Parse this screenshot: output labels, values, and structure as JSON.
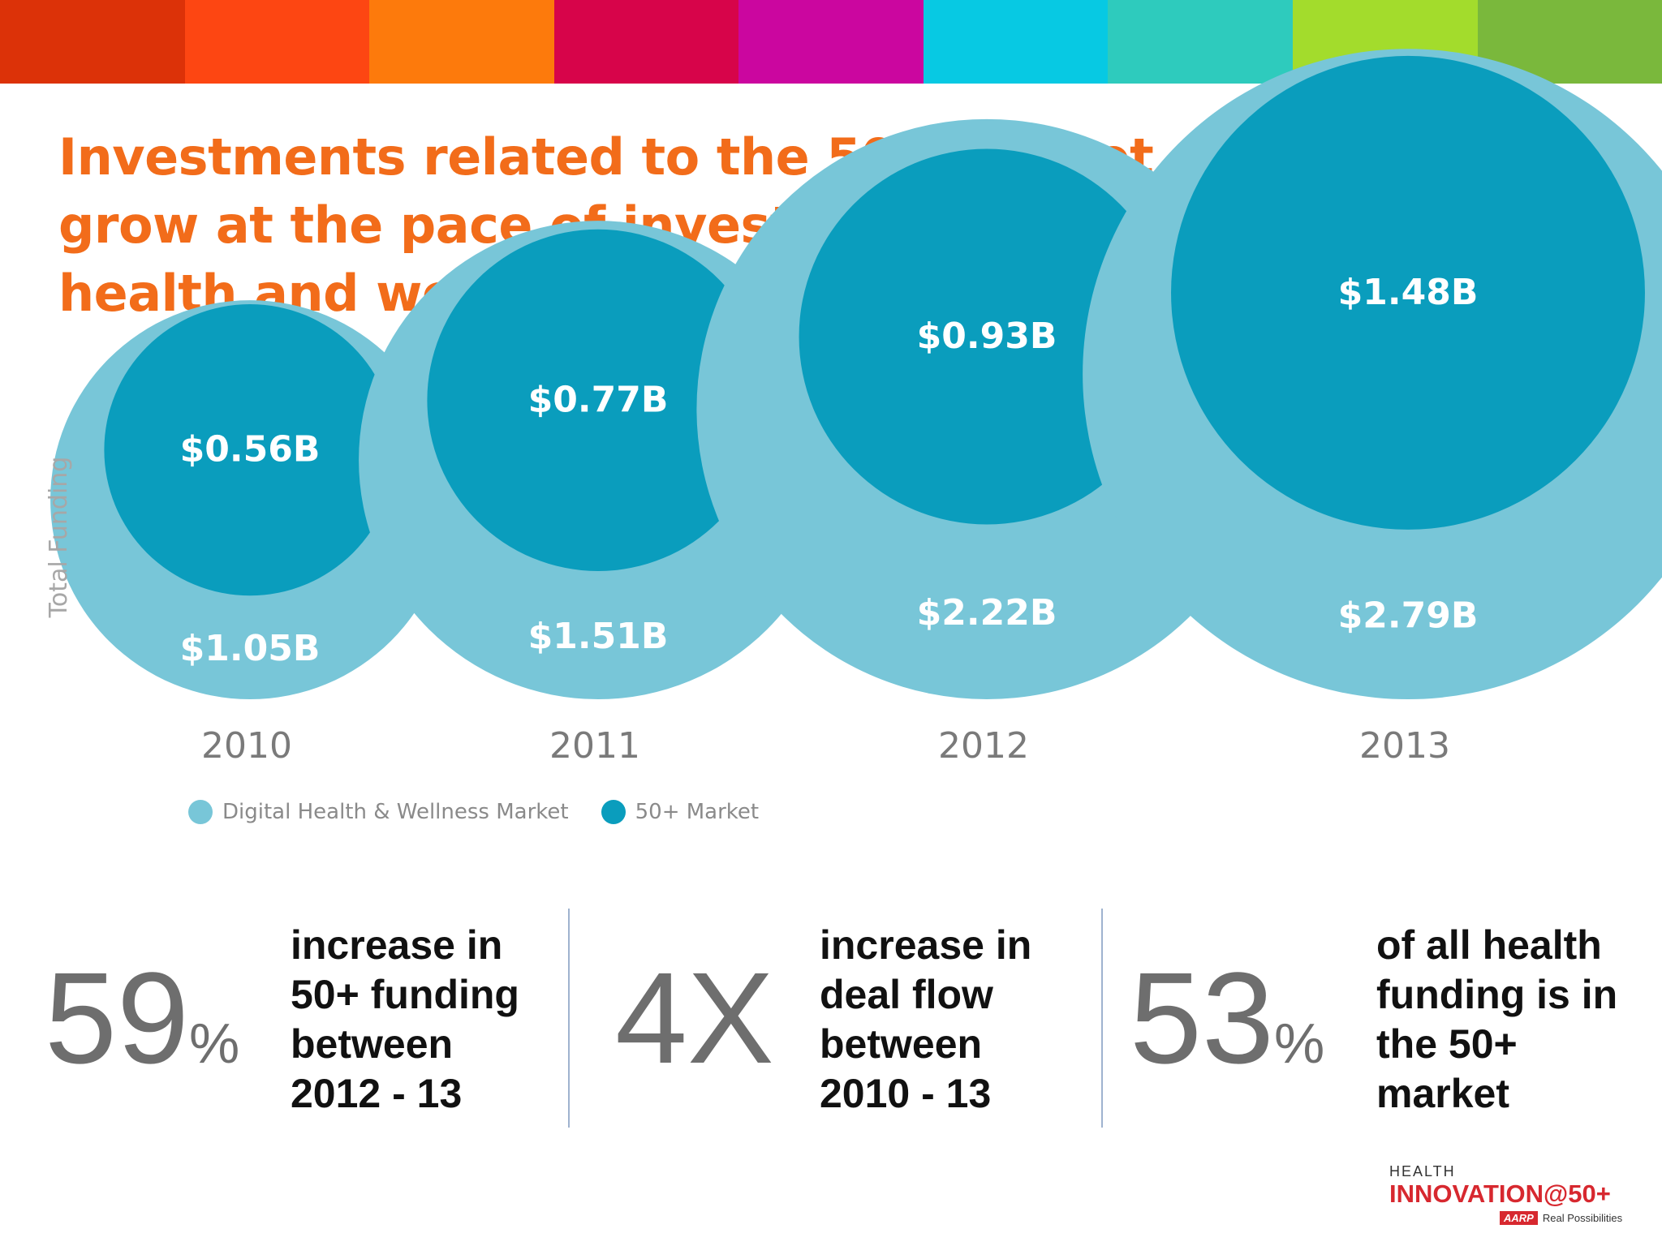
{
  "title": "Investments related to the 50+ market continue to grow at the pace of investments in the larger digital health and wellness market",
  "top_bar_colors": [
    "#dc3208",
    "#fd4612",
    "#fd7a0c",
    "#d7044a",
    "#cb069f",
    "#07c9e3",
    "#2ecbbd",
    "#a3dc2c",
    "#7ab83c"
  ],
  "colors": {
    "digital_health": "#78c6d8",
    "market_50": "#0a9dbd",
    "title": "#f26c1a"
  },
  "chart_data": {
    "type": "bubble",
    "ylabel": "Total Funding",
    "categories": [
      "2010",
      "2011",
      "2012",
      "2013"
    ],
    "series": [
      {
        "name": "Digital Health & Wellness Market",
        "values": [
          1.05,
          1.51,
          2.22,
          2.79
        ],
        "labels": [
          "$1.05B",
          "$1.51B",
          "$2.22B",
          "$2.79B"
        ]
      },
      {
        "name": "50+ Market",
        "values": [
          0.56,
          0.77,
          0.93,
          1.48
        ],
        "labels": [
          "$0.56B",
          "$0.77B",
          "$0.93B",
          "$1.48B"
        ]
      }
    ],
    "legend_position": "bottom-left"
  },
  "stats": [
    {
      "number": "59",
      "unit": "%",
      "lines": [
        "increase in",
        "50+ funding",
        "between",
        "2012 - 13"
      ]
    },
    {
      "number": "4X",
      "unit": "",
      "lines": [
        "increase in",
        "deal flow",
        "between",
        "2010 - 13"
      ]
    },
    {
      "number": "53",
      "unit": "%",
      "lines": [
        "of all health",
        "funding is in",
        "the 50+",
        "market"
      ]
    }
  ],
  "logo": {
    "small": "HEALTH",
    "main": "INNOVATION@50+",
    "brand": "AARP",
    "tagline": "Real Possibilities"
  }
}
